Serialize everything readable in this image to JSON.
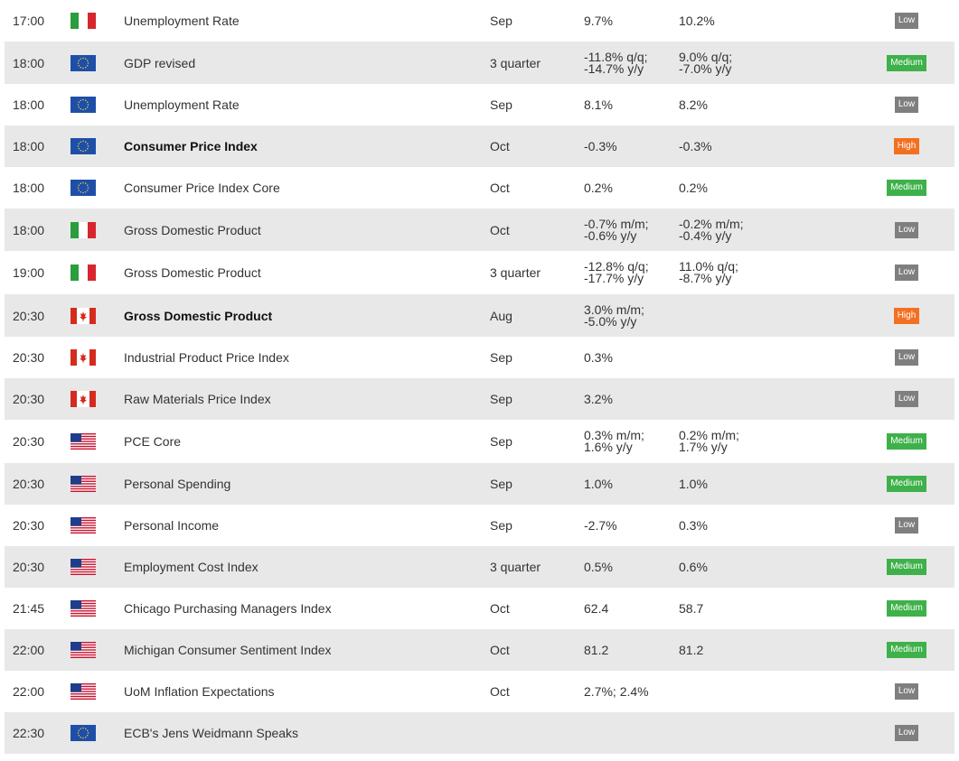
{
  "colors": {
    "low": "#7f7f7f",
    "medium": "#3eb14a",
    "high": "#f37021",
    "row_alt": "#e8e8e8"
  },
  "events": [
    {
      "time": "17:00",
      "flag": "it-flag-icon",
      "name": "Unemployment Rate",
      "bold": false,
      "period": "Sep",
      "actual": [
        "9.7%"
      ],
      "previous": [
        "10.2%"
      ],
      "importance": "Low"
    },
    {
      "time": "18:00",
      "flag": "eu-flag-icon",
      "name": "GDP revised",
      "bold": false,
      "period": "3 quarter",
      "actual": [
        "-11.8% q/q;",
        "-14.7% y/y"
      ],
      "previous": [
        "9.0% q/q;",
        "-7.0% y/y"
      ],
      "importance": "Medium"
    },
    {
      "time": "18:00",
      "flag": "eu-flag-icon",
      "name": "Unemployment Rate",
      "bold": false,
      "period": "Sep",
      "actual": [
        "8.1%"
      ],
      "previous": [
        "8.2%"
      ],
      "importance": "Low"
    },
    {
      "time": "18:00",
      "flag": "eu-flag-icon",
      "name": "Consumer Price Index",
      "bold": true,
      "period": "Oct",
      "actual": [
        "-0.3%"
      ],
      "previous": [
        "-0.3%"
      ],
      "importance": "High"
    },
    {
      "time": "18:00",
      "flag": "eu-flag-icon",
      "name": "Consumer Price Index Core",
      "bold": false,
      "period": "Oct",
      "actual": [
        "0.2%"
      ],
      "previous": [
        "0.2%"
      ],
      "importance": "Medium"
    },
    {
      "time": "18:00",
      "flag": "it-flag-icon",
      "name": "Gross Domestic Product",
      "bold": false,
      "period": "Oct",
      "actual": [
        "-0.7% m/m;",
        "-0.6% y/y"
      ],
      "previous": [
        "-0.2% m/m;",
        "-0.4% y/y"
      ],
      "importance": "Low"
    },
    {
      "time": "19:00",
      "flag": "it-flag-icon",
      "name": "Gross Domestic Product",
      "bold": false,
      "period": "3 quarter",
      "actual": [
        "-12.8% q/q;",
        "-17.7% y/y"
      ],
      "previous": [
        "11.0% q/q;",
        "-8.7% y/y"
      ],
      "importance": "Low"
    },
    {
      "time": "20:30",
      "flag": "ca-flag-icon",
      "name": "Gross Domestic Product",
      "bold": true,
      "period": "Aug",
      "actual": [
        "3.0% m/m;",
        "-5.0% y/y"
      ],
      "previous": [],
      "importance": "High"
    },
    {
      "time": "20:30",
      "flag": "ca-flag-icon",
      "name": "Industrial Product Price Index",
      "bold": false,
      "period": "Sep",
      "actual": [
        "0.3%"
      ],
      "previous": [],
      "importance": "Low"
    },
    {
      "time": "20:30",
      "flag": "ca-flag-icon",
      "name": "Raw Materials Price Index",
      "bold": false,
      "period": "Sep",
      "actual": [
        "3.2%"
      ],
      "previous": [],
      "importance": "Low"
    },
    {
      "time": "20:30",
      "flag": "us-flag-icon",
      "name": "PCE Core",
      "bold": false,
      "period": "Sep",
      "actual": [
        "0.3% m/m;",
        "1.6% y/y"
      ],
      "previous": [
        "0.2% m/m;",
        "1.7% y/y"
      ],
      "importance": "Medium"
    },
    {
      "time": "20:30",
      "flag": "us-flag-icon",
      "name": "Personal Spending",
      "bold": false,
      "period": "Sep",
      "actual": [
        "1.0%"
      ],
      "previous": [
        "1.0%"
      ],
      "importance": "Medium"
    },
    {
      "time": "20:30",
      "flag": "us-flag-icon",
      "name": "Personal Income",
      "bold": false,
      "period": "Sep",
      "actual": [
        "-2.7%"
      ],
      "previous": [
        "0.3%"
      ],
      "importance": "Low"
    },
    {
      "time": "20:30",
      "flag": "us-flag-icon",
      "name": "Employment Cost Index",
      "bold": false,
      "period": "3 quarter",
      "actual": [
        "0.5%"
      ],
      "previous": [
        "0.6%"
      ],
      "importance": "Medium"
    },
    {
      "time": "21:45",
      "flag": "us-flag-icon",
      "name": "Chicago Purchasing Managers Index",
      "bold": false,
      "period": "Oct",
      "actual": [
        "62.4"
      ],
      "previous": [
        "58.7"
      ],
      "importance": "Medium"
    },
    {
      "time": "22:00",
      "flag": "us-flag-icon",
      "name": "Michigan Consumer Sentiment Index",
      "bold": false,
      "period": "Oct",
      "actual": [
        "81.2"
      ],
      "previous": [
        "81.2"
      ],
      "importance": "Medium"
    },
    {
      "time": "22:00",
      "flag": "us-flag-icon",
      "name": "UoM Inflation Expectations",
      "bold": false,
      "period": "Oct",
      "actual": [
        "2.7%; 2.4%"
      ],
      "previous": [],
      "importance": "Low"
    },
    {
      "time": "22:30",
      "flag": "eu-flag-icon",
      "name": "ECB's Jens Weidmann Speaks",
      "bold": false,
      "period": "",
      "actual": [],
      "previous": [],
      "importance": "Low"
    }
  ]
}
